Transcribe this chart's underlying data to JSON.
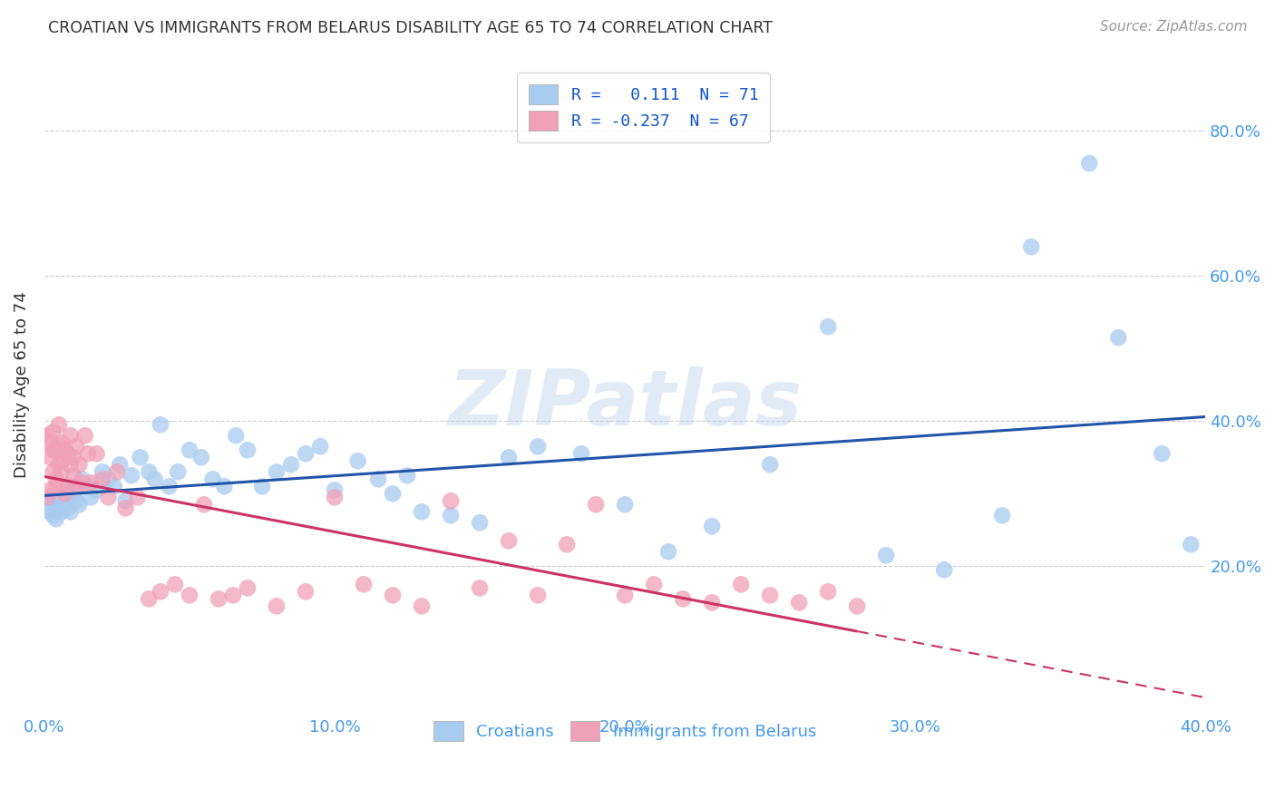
{
  "title": "CROATIAN VS IMMIGRANTS FROM BELARUS DISABILITY AGE 65 TO 74 CORRELATION CHART",
  "source": "Source: ZipAtlas.com",
  "xlabel_croatians": "Croatians",
  "xlabel_immigrants": "Immigrants from Belarus",
  "ylabel": "Disability Age 65 to 74",
  "xlim": [
    0.0,
    0.4
  ],
  "ylim": [
    0.0,
    0.9
  ],
  "xticks": [
    0.0,
    0.1,
    0.2,
    0.3,
    0.4
  ],
  "xtick_labels": [
    "0.0%",
    "10.0%",
    "20.0%",
    "30.0%",
    "40.0%"
  ],
  "yticks": [
    0.2,
    0.4,
    0.6,
    0.8
  ],
  "ytick_labels": [
    "20.0%",
    "40.0%",
    "60.0%",
    "80.0%"
  ],
  "color_croatian": "#A8CCF0",
  "color_immigrant": "#F0A0B8",
  "line_color_croatian": "#2255AA",
  "line_color_immigrant": "#CC3366",
  "legend_R_croatian": "R =   0.111  N = 71",
  "legend_R_immigrant": "R = -0.237  N = 67",
  "watermark": "ZIPatlas",
  "croatian_x": [
    0.001,
    0.002,
    0.002,
    0.003,
    0.003,
    0.004,
    0.004,
    0.005,
    0.005,
    0.006,
    0.006,
    0.007,
    0.007,
    0.008,
    0.008,
    0.009,
    0.01,
    0.01,
    0.011,
    0.012,
    0.013,
    0.015,
    0.016,
    0.018,
    0.02,
    0.022,
    0.024,
    0.026,
    0.028,
    0.03,
    0.033,
    0.036,
    0.038,
    0.04,
    0.043,
    0.046,
    0.05,
    0.054,
    0.058,
    0.062,
    0.066,
    0.07,
    0.075,
    0.08,
    0.085,
    0.09,
    0.095,
    0.1,
    0.108,
    0.115,
    0.12,
    0.125,
    0.13,
    0.14,
    0.15,
    0.16,
    0.17,
    0.185,
    0.2,
    0.215,
    0.23,
    0.25,
    0.27,
    0.29,
    0.31,
    0.33,
    0.34,
    0.36,
    0.37,
    0.385,
    0.395
  ],
  "croatian_y": [
    0.29,
    0.28,
    0.275,
    0.295,
    0.27,
    0.285,
    0.265,
    0.28,
    0.29,
    0.275,
    0.295,
    0.285,
    0.3,
    0.31,
    0.28,
    0.275,
    0.295,
    0.305,
    0.29,
    0.285,
    0.32,
    0.31,
    0.295,
    0.305,
    0.33,
    0.32,
    0.31,
    0.34,
    0.29,
    0.325,
    0.35,
    0.33,
    0.32,
    0.395,
    0.31,
    0.33,
    0.36,
    0.35,
    0.32,
    0.31,
    0.38,
    0.36,
    0.31,
    0.33,
    0.34,
    0.355,
    0.365,
    0.305,
    0.345,
    0.32,
    0.3,
    0.325,
    0.275,
    0.27,
    0.26,
    0.35,
    0.365,
    0.355,
    0.285,
    0.22,
    0.255,
    0.34,
    0.53,
    0.215,
    0.195,
    0.27,
    0.64,
    0.755,
    0.515,
    0.355,
    0.23
  ],
  "immigrant_x": [
    0.001,
    0.001,
    0.002,
    0.002,
    0.002,
    0.003,
    0.003,
    0.003,
    0.004,
    0.004,
    0.004,
    0.005,
    0.005,
    0.005,
    0.006,
    0.006,
    0.006,
    0.007,
    0.007,
    0.008,
    0.008,
    0.009,
    0.009,
    0.01,
    0.01,
    0.011,
    0.011,
    0.012,
    0.013,
    0.014,
    0.015,
    0.016,
    0.018,
    0.02,
    0.022,
    0.025,
    0.028,
    0.032,
    0.036,
    0.04,
    0.045,
    0.05,
    0.055,
    0.06,
    0.065,
    0.07,
    0.08,
    0.09,
    0.1,
    0.11,
    0.12,
    0.13,
    0.14,
    0.15,
    0.16,
    0.17,
    0.18,
    0.19,
    0.2,
    0.21,
    0.22,
    0.23,
    0.24,
    0.25,
    0.26,
    0.27,
    0.28
  ],
  "immigrant_y": [
    0.295,
    0.38,
    0.35,
    0.37,
    0.305,
    0.36,
    0.33,
    0.385,
    0.31,
    0.36,
    0.32,
    0.365,
    0.34,
    0.395,
    0.33,
    0.345,
    0.37,
    0.3,
    0.36,
    0.355,
    0.31,
    0.34,
    0.38,
    0.325,
    0.35,
    0.31,
    0.365,
    0.34,
    0.315,
    0.38,
    0.355,
    0.315,
    0.355,
    0.32,
    0.295,
    0.33,
    0.28,
    0.295,
    0.155,
    0.165,
    0.175,
    0.16,
    0.285,
    0.155,
    0.16,
    0.17,
    0.145,
    0.165,
    0.295,
    0.175,
    0.16,
    0.145,
    0.29,
    0.17,
    0.235,
    0.16,
    0.23,
    0.285,
    0.16,
    0.175,
    0.155,
    0.15,
    0.175,
    0.16,
    0.15,
    0.165,
    0.145
  ]
}
